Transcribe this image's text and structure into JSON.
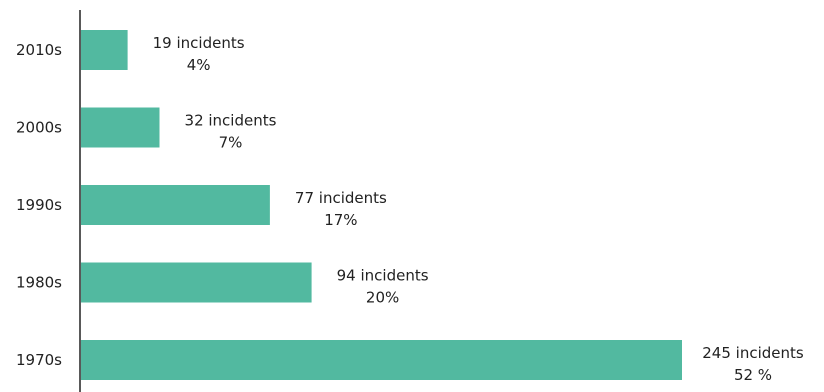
{
  "chart_data": {
    "type": "bar",
    "orientation": "horizontal",
    "categories": [
      "2010s",
      "2000s",
      "1990s",
      "1980s",
      "1970s"
    ],
    "values": [
      19,
      32,
      77,
      94,
      245
    ],
    "labels": [
      {
        "count": "19 incidents",
        "percent": "4%"
      },
      {
        "count": "32 incidents",
        "percent": "7%"
      },
      {
        "count": "77 incidents",
        "percent": "17%"
      },
      {
        "count": "94 incidents",
        "percent": "20%"
      },
      {
        "count": "245 incidents",
        "percent": "52 %"
      }
    ],
    "bar_color": "#52b9a0",
    "axis_color": "#222222",
    "title": "",
    "xlabel": "",
    "ylabel": ""
  }
}
